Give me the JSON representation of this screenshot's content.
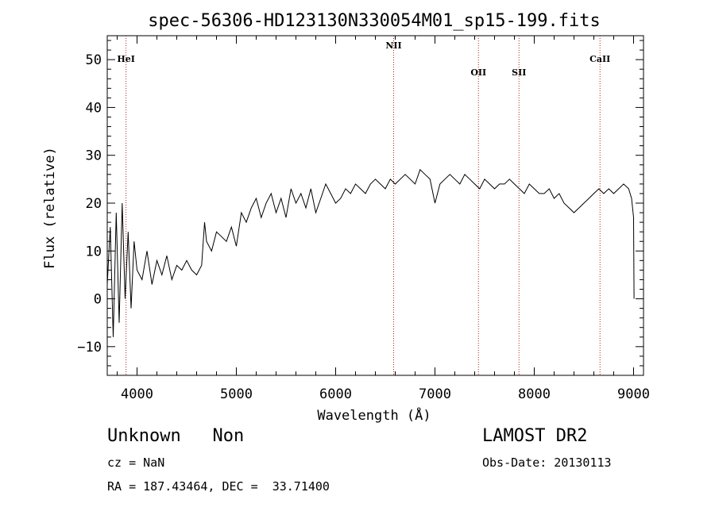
{
  "chart_data": {
    "type": "line",
    "title": "spec-56306-HD123130N330054M01_sp15-199.fits",
    "xlabel": "Wavelength (Å)",
    "ylabel": "Flux (relative)",
    "xlim": [
      3700,
      9100
    ],
    "ylim": [
      -16,
      55
    ],
    "xticks": [
      4000,
      5000,
      6000,
      7000,
      8000,
      9000
    ],
    "yticks": [
      -10,
      0,
      10,
      20,
      30,
      40,
      50
    ],
    "ytick_labels": [
      "−10",
      "0",
      "10",
      "20",
      "30",
      "40",
      "50"
    ],
    "grid": false,
    "line_color": "#000000",
    "marker_color": "#aa2222",
    "spectral_lines": [
      {
        "name": "HeI",
        "wavelength": 3889
      },
      {
        "name": "NII",
        "wavelength": 6584
      },
      {
        "name": "OII",
        "wavelength": 7438
      },
      {
        "name": "SII",
        "wavelength": 7846
      },
      {
        "name": "CaII",
        "wavelength": 8662
      }
    ],
    "series": [
      {
        "x": [
          3700,
          3730,
          3760,
          3790,
          3820,
          3850,
          3880,
          3910,
          3940,
          3970,
          4000,
          4050,
          4100,
          4150,
          4200,
          4250,
          4300,
          4350,
          4400,
          4450,
          4500,
          4550,
          4600,
          4650,
          4680,
          4700,
          4750,
          4800,
          4850,
          4900,
          4950,
          5000,
          5050,
          5100,
          5150,
          5200,
          5250,
          5300,
          5350,
          5400,
          5450,
          5500,
          5550,
          5600,
          5650,
          5700,
          5750,
          5800,
          5850,
          5900,
          5950,
          6000,
          6050,
          6100,
          6150,
          6200,
          6250,
          6300,
          6350,
          6400,
          6450,
          6500,
          6550,
          6600,
          6650,
          6700,
          6750,
          6800,
          6850,
          6900,
          6950,
          7000,
          7050,
          7100,
          7150,
          7200,
          7250,
          7300,
          7350,
          7400,
          7450,
          7500,
          7550,
          7600,
          7650,
          7700,
          7750,
          7800,
          7850,
          7900,
          7950,
          8000,
          8050,
          8100,
          8150,
          8200,
          8250,
          8300,
          8350,
          8400,
          8450,
          8500,
          8550,
          8600,
          8650,
          8700,
          8750,
          8800,
          8850,
          8900,
          8950,
          8980,
          9000,
          9005
        ],
        "y": [
          3,
          15,
          -8,
          18,
          -5,
          20,
          0,
          14,
          -2,
          12,
          6,
          4,
          10,
          3,
          8,
          5,
          9,
          4,
          7,
          6,
          8,
          6,
          5,
          7,
          16,
          12,
          10,
          14,
          13,
          12,
          15,
          11,
          18,
          16,
          19,
          21,
          17,
          20,
          22,
          18,
          21,
          17,
          23,
          20,
          22,
          19,
          23,
          18,
          21,
          24,
          22,
          20,
          21,
          23,
          22,
          24,
          23,
          22,
          24,
          25,
          24,
          23,
          25,
          24,
          25,
          26,
          25,
          24,
          27,
          26,
          25,
          20,
          24,
          25,
          26,
          25,
          24,
          26,
          25,
          24,
          23,
          25,
          24,
          23,
          24,
          24,
          25,
          24,
          23,
          22,
          24,
          23,
          22,
          22,
          23,
          21,
          22,
          20,
          19,
          18,
          19,
          20,
          21,
          22,
          23,
          22,
          23,
          22,
          23,
          24,
          23,
          21,
          17,
          0
        ]
      }
    ]
  },
  "footer": {
    "object_class": "Unknown   Non",
    "survey": "LAMOST DR2",
    "cz": "cz = NaN",
    "obs_date": "Obs-Date: 20130113",
    "coords": "RA = 187.43464, DEC =  33.71400"
  }
}
